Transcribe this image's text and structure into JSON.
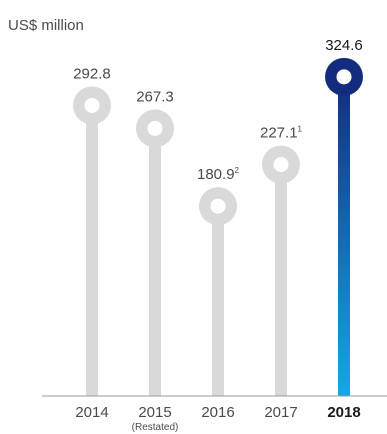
{
  "chart_data": {
    "type": "bar",
    "ylabel": "US$ million",
    "categories": [
      "2014",
      "2015",
      "2016",
      "2017",
      "2018"
    ],
    "category_notes": [
      "",
      "(Restated)",
      "",
      "",
      ""
    ],
    "values": [
      292.8,
      267.3,
      180.9,
      227.1,
      324.6
    ],
    "value_labels": [
      "292.8",
      "267.3",
      "180.9",
      "227.1",
      "324.6"
    ],
    "footnotes": [
      "",
      "",
      "2",
      "1",
      ""
    ],
    "highlight_index": 4,
    "colors": {
      "bar": "#d9d9d9",
      "highlight_top": "#142c7f",
      "highlight_bottom": "#14a8e6",
      "marker_inner": "#ffffff",
      "label": "#4a4a4a",
      "highlight_label": "#1a1a1a",
      "axis": "#9a9a9a"
    }
  }
}
